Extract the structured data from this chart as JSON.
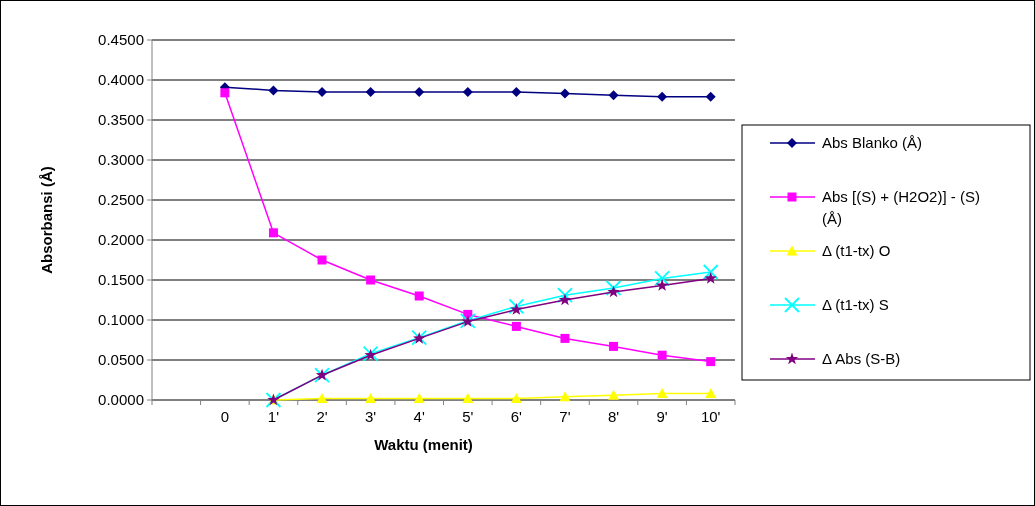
{
  "chart_data": {
    "type": "line",
    "xlabel": "Waktu (menit)",
    "ylabel": "Absorbansi (Å)",
    "categories": [
      null,
      "0",
      "1'",
      "2'",
      "3'",
      "4'",
      "5'",
      "6'",
      "7'",
      "8'",
      "9'",
      "10'"
    ],
    "series": [
      {
        "name": "Abs Blanko (Å)",
        "color": "#000080",
        "marker": "diamond",
        "values": [
          null,
          0.391,
          0.387,
          0.385,
          0.385,
          0.385,
          0.385,
          0.385,
          0.383,
          0.381,
          0.379,
          0.379
        ]
      },
      {
        "name": "Abs [(S) + (H2O2)] - (S)  (Å)",
        "color": "#ff00ff",
        "marker": "square",
        "values": [
          null,
          0.384,
          0.209,
          0.175,
          0.15,
          0.13,
          0.107,
          0.092,
          0.077,
          0.067,
          0.056,
          0.048
        ]
      },
      {
        "name": "Δ (t1-tx) O",
        "color": "#ffff00",
        "marker": "triangle",
        "values": [
          null,
          null,
          0,
          0.002,
          0.002,
          0.002,
          0.002,
          0.002,
          0.004,
          0.006,
          0.008,
          0.008
        ]
      },
      {
        "name": "Δ (t1-tx) S",
        "color": "#00ffff",
        "marker": "cross",
        "values": [
          null,
          null,
          0,
          0.031,
          0.058,
          0.078,
          0.099,
          0.117,
          0.131,
          0.14,
          0.152,
          0.16
        ]
      },
      {
        "name": "Δ Abs (S-B)",
        "color": "#800080",
        "marker": "star",
        "values": [
          null,
          null,
          0,
          0.031,
          0.056,
          0.077,
          0.098,
          0.113,
          0.125,
          0.135,
          0.143,
          0.152
        ]
      }
    ],
    "ylim": [
      0,
      0.45
    ],
    "yticks": [
      {
        "value": 0,
        "label": "0.0000"
      },
      {
        "value": 0.05,
        "label": "0.0500"
      },
      {
        "value": 0.1,
        "label": "0.1000"
      },
      {
        "value": 0.15,
        "label": "0.1500"
      },
      {
        "value": 0.2,
        "label": "0.2000"
      },
      {
        "value": 0.25,
        "label": "0.2500"
      },
      {
        "value": 0.3,
        "label": "0.3000"
      },
      {
        "value": 0.35,
        "label": "0.3500"
      },
      {
        "value": 0.4,
        "label": "0.4000"
      },
      {
        "value": 0.45,
        "label": "0.4500"
      }
    ],
    "grid": "y",
    "legend": "right",
    "line_style": "solid"
  }
}
